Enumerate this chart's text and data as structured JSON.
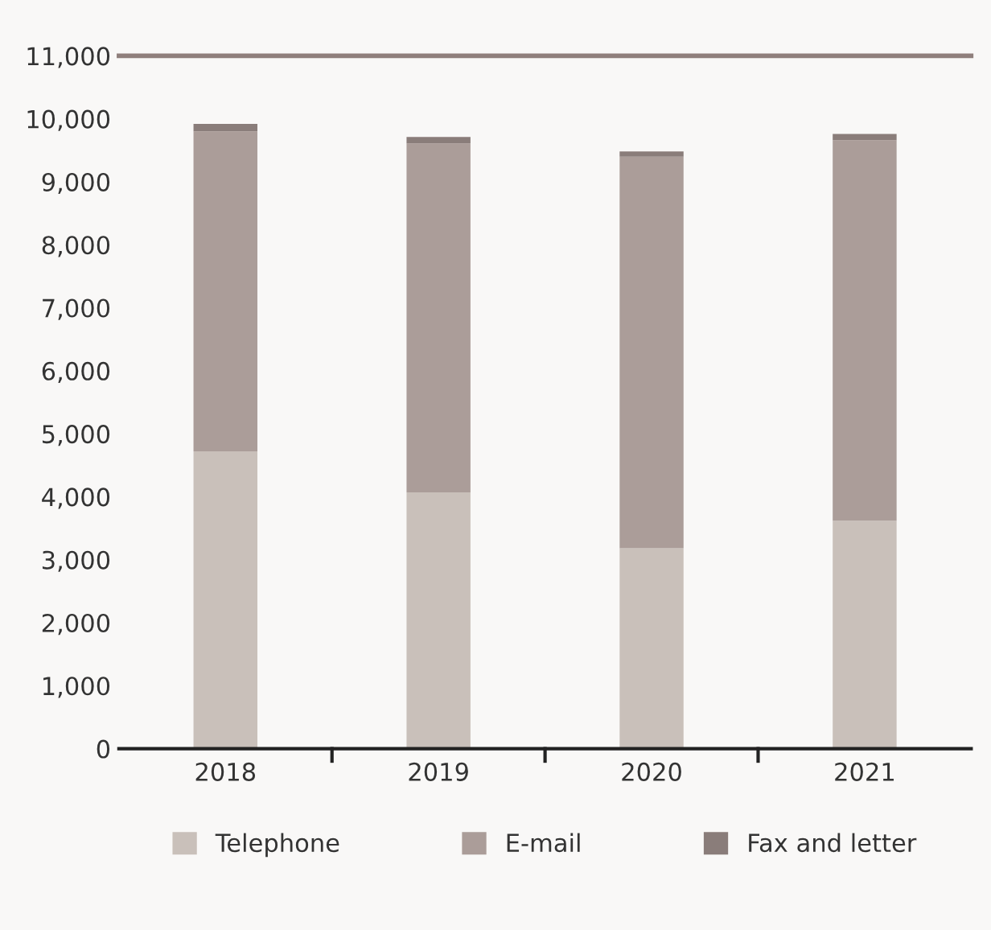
{
  "chart_data": {
    "type": "bar",
    "stacked": true,
    "categories": [
      "2018",
      "2019",
      "2020",
      "2021"
    ],
    "series": [
      {
        "name": "Telephone",
        "color": "#c9c0ba",
        "values": [
          4720,
          4070,
          3180,
          3620
        ]
      },
      {
        "name": "E-mail",
        "color": "#ab9d99",
        "values": [
          5080,
          5540,
          6220,
          6040
        ]
      },
      {
        "name": "Fax and letter",
        "color": "#8a7d7a",
        "values": [
          120,
          100,
          80,
          100
        ]
      }
    ],
    "ylim": [
      0,
      11000
    ],
    "yticks": [
      {
        "value": 0,
        "label": "0"
      },
      {
        "value": 1000,
        "label": "1,000"
      },
      {
        "value": 2000,
        "label": "2,000"
      },
      {
        "value": 3000,
        "label": "3,000"
      },
      {
        "value": 4000,
        "label": "4,000"
      },
      {
        "value": 5000,
        "label": "5,000"
      },
      {
        "value": 6000,
        "label": "6,000"
      },
      {
        "value": 7000,
        "label": "7,000"
      },
      {
        "value": 8000,
        "label": "8,000"
      },
      {
        "value": 9000,
        "label": "9,000"
      },
      {
        "value": 10000,
        "label": "10,000"
      },
      {
        "value": 11000,
        "label": "11,000"
      }
    ],
    "ref_lines": [
      {
        "axis": "y",
        "value": 11000,
        "label": null,
        "color": "#8f7f7c"
      }
    ],
    "grid": false,
    "legend": "bottom"
  }
}
